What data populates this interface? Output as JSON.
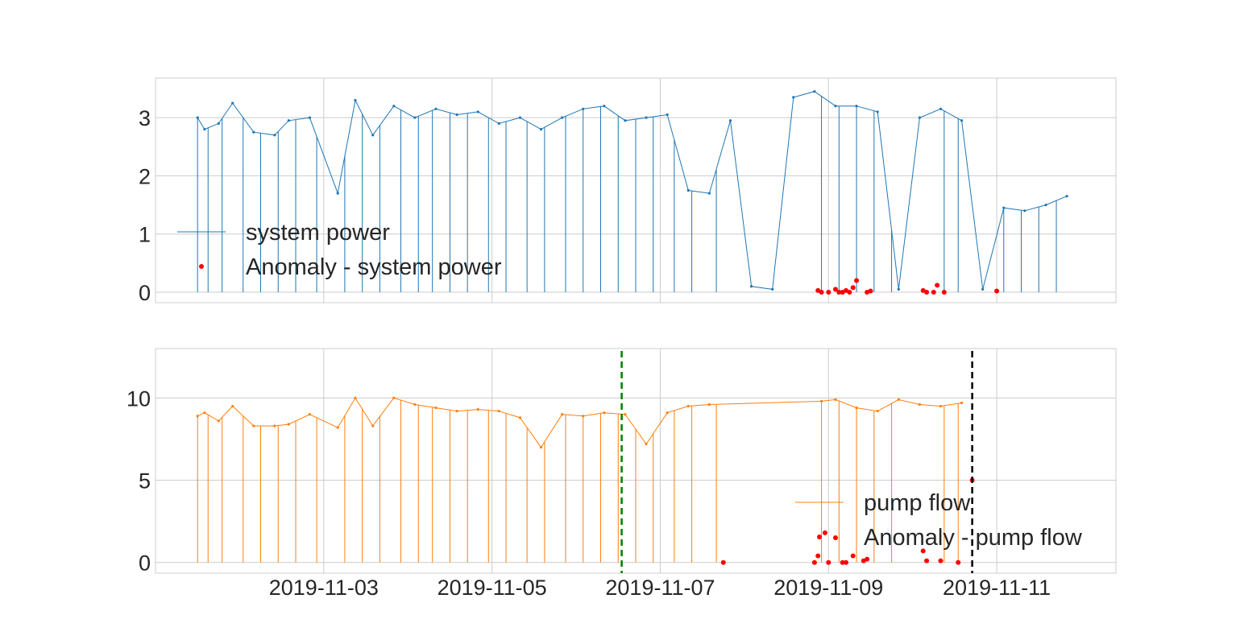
{
  "chart_data": [
    {
      "type": "line",
      "title": "",
      "xlabel": "",
      "ylabel": "",
      "xlim": [
        "2019-11-01T00:00",
        "2019-11-12T10:00"
      ],
      "ylim": [
        -0.18,
        3.68
      ],
      "yticks": [
        0,
        1,
        2,
        3
      ],
      "xticks": [
        "2019-11-03",
        "2019-11-05",
        "2019-11-07",
        "2019-11-09",
        "2019-11-11"
      ],
      "show_xtick_labels": false,
      "grid": true,
      "legend_position": "center-left",
      "series": [
        {
          "name": "system power",
          "style": "line",
          "color": "#1f77b4",
          "x": [
            "2019-11-01T12:00",
            "2019-11-01T14:00",
            "2019-11-01T18:00",
            "2019-11-01T22:00",
            "2019-11-02T04:00",
            "2019-11-02T10:00",
            "2019-11-02T14:00",
            "2019-11-02T20:00",
            "2019-11-03T04:00",
            "2019-11-03T09:00",
            "2019-11-03T14:00",
            "2019-11-03T20:00",
            "2019-11-04T02:00",
            "2019-11-04T08:00",
            "2019-11-04T14:00",
            "2019-11-04T20:00",
            "2019-11-05T02:00",
            "2019-11-05T08:00",
            "2019-11-05T14:00",
            "2019-11-05T20:00",
            "2019-11-06T02:00",
            "2019-11-06T08:00",
            "2019-11-06T14:00",
            "2019-11-06T20:00",
            "2019-11-07T02:00",
            "2019-11-07T08:00",
            "2019-11-07T14:00",
            "2019-11-07T20:00",
            "2019-11-08T02:00",
            "2019-11-08T08:00",
            "2019-11-08T14:00",
            "2019-11-08T20:00",
            "2019-11-09T02:00",
            "2019-11-09T08:00",
            "2019-11-09T14:00",
            "2019-11-09T20:00",
            "2019-11-10T02:00",
            "2019-11-10T08:00",
            "2019-11-10T14:00",
            "2019-11-10T20:00",
            "2019-11-11T02:00",
            "2019-11-11T08:00",
            "2019-11-11T14:00",
            "2019-11-11T20:00"
          ],
          "y": [
            3.0,
            2.8,
            2.9,
            3.25,
            2.75,
            2.7,
            2.95,
            3.0,
            1.7,
            3.3,
            2.7,
            3.2,
            3.0,
            3.15,
            3.05,
            3.1,
            2.9,
            3.0,
            2.8,
            3.0,
            3.15,
            3.2,
            2.95,
            3.0,
            3.05,
            1.75,
            1.7,
            2.95,
            0.1,
            0.05,
            3.35,
            3.45,
            3.2,
            3.2,
            3.1,
            0.05,
            3.0,
            3.15,
            2.95,
            0.05,
            1.45,
            1.4,
            1.5,
            1.65
          ],
          "drops": [
            "2019-11-01T12:00",
            "2019-11-01T15:00",
            "2019-11-01T19:00",
            "2019-11-02T01:00",
            "2019-11-02T06:00",
            "2019-11-02T11:00",
            "2019-11-02T16:00",
            "2019-11-02T22:00",
            "2019-11-03T06:00",
            "2019-11-03T11:00",
            "2019-11-03T16:00",
            "2019-11-03T22:00",
            "2019-11-04T03:00",
            "2019-11-04T07:00",
            "2019-11-04T12:00",
            "2019-11-04T17:00",
            "2019-11-04T23:00",
            "2019-11-05T04:00",
            "2019-11-05T10:00",
            "2019-11-05T15:00",
            "2019-11-05T21:00",
            "2019-11-06T02:00",
            "2019-11-06T07:00",
            "2019-11-06T12:00",
            "2019-11-06T17:00",
            "2019-11-06T22:00",
            "2019-11-07T04:00",
            "2019-11-07T09:00",
            "2019-11-07T16:00",
            "2019-11-08T22:00",
            "2019-11-09T03:00",
            "2019-11-09T08:00",
            "2019-11-09T13:00",
            "2019-11-09T18:00",
            "2019-11-10T09:00",
            "2019-11-10T13:00",
            "2019-11-11T02:00",
            "2019-11-11T07:00",
            "2019-11-11T12:00",
            "2019-11-11T17:00"
          ]
        },
        {
          "name": "Anomaly - system power",
          "style": "marker",
          "color": "#ff0000",
          "x": [
            "2019-11-08T21:00",
            "2019-11-08T22:00",
            "2019-11-09T00:00",
            "2019-11-09T02:00",
            "2019-11-09T03:00",
            "2019-11-09T04:00",
            "2019-11-09T05:00",
            "2019-11-09T06:00",
            "2019-11-09T07:00",
            "2019-11-09T08:00",
            "2019-11-09T11:00",
            "2019-11-09T12:00",
            "2019-11-10T03:00",
            "2019-11-10T04:00",
            "2019-11-10T06:00",
            "2019-11-10T07:00",
            "2019-11-10T09:00",
            "2019-11-11T00:00"
          ],
          "y": [
            0.03,
            0.0,
            0.0,
            0.05,
            0.0,
            0.0,
            0.03,
            0.0,
            0.08,
            0.2,
            0.0,
            0.02,
            0.03,
            0.0,
            0.0,
            0.12,
            0.0,
            0.02
          ]
        }
      ]
    },
    {
      "type": "line",
      "title": "",
      "xlabel": "",
      "ylabel": "",
      "xlim": [
        "2019-11-01T00:00",
        "2019-11-12T10:00"
      ],
      "ylim": [
        -0.65,
        13.0
      ],
      "yticks": [
        0,
        5,
        10
      ],
      "xticks": [
        "2019-11-03",
        "2019-11-05",
        "2019-11-07",
        "2019-11-09",
        "2019-11-11"
      ],
      "show_xtick_labels": true,
      "grid": true,
      "legend_position": "lower-right",
      "vlines": [
        {
          "x": "2019-11-06T13:00",
          "color": "#008000",
          "style": "dashed"
        },
        {
          "x": "2019-11-10T17:00",
          "color": "#000000",
          "style": "dashed"
        }
      ],
      "series": [
        {
          "name": "pump flow",
          "style": "line",
          "color": "#ff7f0e",
          "x": [
            "2019-11-01T12:00",
            "2019-11-01T14:00",
            "2019-11-01T18:00",
            "2019-11-01T22:00",
            "2019-11-02T04:00",
            "2019-11-02T10:00",
            "2019-11-02T14:00",
            "2019-11-02T20:00",
            "2019-11-03T04:00",
            "2019-11-03T09:00",
            "2019-11-03T14:00",
            "2019-11-03T20:00",
            "2019-11-04T02:00",
            "2019-11-04T08:00",
            "2019-11-04T14:00",
            "2019-11-04T20:00",
            "2019-11-05T02:00",
            "2019-11-05T08:00",
            "2019-11-05T14:00",
            "2019-11-05T20:00",
            "2019-11-06T02:00",
            "2019-11-06T08:00",
            "2019-11-06T14:00",
            "2019-11-06T20:00",
            "2019-11-07T02:00",
            "2019-11-07T08:00",
            "2019-11-07T14:00",
            "2019-11-08T22:00",
            "2019-11-09T02:00",
            "2019-11-09T08:00",
            "2019-11-09T14:00",
            "2019-11-09T20:00",
            "2019-11-10T02:00",
            "2019-11-10T08:00",
            "2019-11-10T14:00"
          ],
          "y": [
            8.9,
            9.1,
            8.6,
            9.5,
            8.3,
            8.3,
            8.4,
            9.0,
            8.2,
            10.0,
            8.3,
            10.0,
            9.6,
            9.4,
            9.2,
            9.3,
            9.2,
            8.8,
            7.0,
            9.0,
            8.9,
            9.1,
            9.0,
            7.2,
            9.1,
            9.5,
            9.6,
            9.8,
            9.9,
            9.4,
            9.2,
            9.9,
            9.6,
            9.5,
            9.7
          ],
          "drops": [
            "2019-11-01T12:00",
            "2019-11-01T15:00",
            "2019-11-01T19:00",
            "2019-11-02T01:00",
            "2019-11-02T06:00",
            "2019-11-02T11:00",
            "2019-11-02T16:00",
            "2019-11-02T22:00",
            "2019-11-03T06:00",
            "2019-11-03T11:00",
            "2019-11-03T16:00",
            "2019-11-03T22:00",
            "2019-11-04T03:00",
            "2019-11-04T07:00",
            "2019-11-04T12:00",
            "2019-11-04T17:00",
            "2019-11-04T23:00",
            "2019-11-05T04:00",
            "2019-11-05T10:00",
            "2019-11-05T15:00",
            "2019-11-05T21:00",
            "2019-11-06T02:00",
            "2019-11-06T07:00",
            "2019-11-06T12:00",
            "2019-11-06T17:00",
            "2019-11-06T22:00",
            "2019-11-07T04:00",
            "2019-11-07T09:00",
            "2019-11-07T16:00",
            "2019-11-08T22:00",
            "2019-11-09T03:00",
            "2019-11-09T08:00",
            "2019-11-09T13:00",
            "2019-11-09T18:00",
            "2019-11-10T09:00",
            "2019-11-10T13:00"
          ]
        },
        {
          "name": "Anomaly - pump flow",
          "style": "marker",
          "color": "#ff0000",
          "x": [
            "2019-11-07T18:00",
            "2019-11-08T20:00",
            "2019-11-08T21:00",
            "2019-11-08T23:00",
            "2019-11-09T00:00",
            "2019-11-09T02:00",
            "2019-11-09T04:00",
            "2019-11-09T05:00",
            "2019-11-09T07:00",
            "2019-11-09T10:00",
            "2019-11-09T11:00",
            "2019-11-10T03:00",
            "2019-11-10T04:00",
            "2019-11-10T08:00",
            "2019-11-10T13:00",
            "2019-11-10T17:00"
          ],
          "y": [
            0.0,
            0.0,
            0.4,
            1.8,
            0.0,
            1.5,
            0.0,
            0.0,
            0.4,
            0.1,
            0.2,
            0.7,
            0.1,
            0.1,
            0.0,
            5.0
          ]
        }
      ]
    }
  ]
}
